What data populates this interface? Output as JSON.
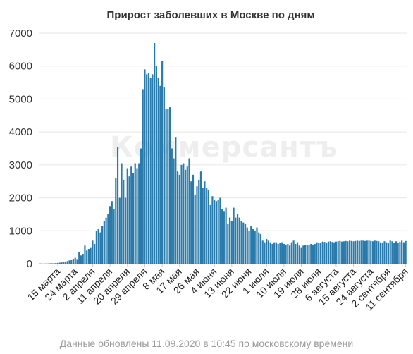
{
  "title": "Прирост заболевших в Москве по дням",
  "watermark": "Коммерсантъ",
  "footnote": "Данные обновлены 11.09.2020 в 10:45 по московскому времени",
  "colors": {
    "bar": "#2a7bab",
    "grid": "#e6e6e6",
    "text": "#333333",
    "footnote": "#9a9a9a"
  },
  "chart_data": {
    "type": "bar",
    "title": "Прирост заболевших в Москве по дням",
    "xlabel": "",
    "ylabel": "",
    "ylim": [
      0,
      7000
    ],
    "yticks": [
      0,
      1000,
      2000,
      3000,
      4000,
      5000,
      6000,
      7000
    ],
    "grid": true,
    "legend": "none",
    "x_start": "2020-03-06",
    "xtick_labels": [
      {
        "index": 9,
        "label": "15 марта"
      },
      {
        "index": 18,
        "label": "24 марта"
      },
      {
        "index": 27,
        "label": "2 апреля"
      },
      {
        "index": 36,
        "label": "11 апреля"
      },
      {
        "index": 45,
        "label": "20 апреля"
      },
      {
        "index": 54,
        "label": "29 апреля"
      },
      {
        "index": 63,
        "label": "8 мая"
      },
      {
        "index": 72,
        "label": "17 мая"
      },
      {
        "index": 81,
        "label": "26 мая"
      },
      {
        "index": 90,
        "label": "4 июня"
      },
      {
        "index": 99,
        "label": "13 июня"
      },
      {
        "index": 108,
        "label": "22 июня"
      },
      {
        "index": 117,
        "label": "1 июля"
      },
      {
        "index": 126,
        "label": "10 июля"
      },
      {
        "index": 135,
        "label": "19 июля"
      },
      {
        "index": 144,
        "label": "28 июля"
      },
      {
        "index": 153,
        "label": "6 августа"
      },
      {
        "index": 162,
        "label": "15 августа"
      },
      {
        "index": 171,
        "label": "24 августа"
      },
      {
        "index": 180,
        "label": "2 сентября"
      },
      {
        "index": 189,
        "label": "11 сентября"
      }
    ],
    "values": [
      6,
      0,
      3,
      4,
      5,
      10,
      12,
      15,
      20,
      25,
      32,
      40,
      50,
      60,
      80,
      100,
      120,
      150,
      180,
      140,
      350,
      250,
      300,
      550,
      400,
      450,
      500,
      700,
      600,
      1000,
      1050,
      950,
      1150,
      1300,
      1400,
      1500,
      1750,
      1900,
      1650,
      2600,
      3550,
      2000,
      3050,
      2550,
      2000,
      2900,
      2650,
      2950,
      2750,
      3050,
      2900,
      3050,
      3500,
      5300,
      5900,
      5750,
      5800,
      5650,
      5750,
      6700,
      6000,
      5650,
      5400,
      6150,
      5350,
      4700,
      4700,
      4750,
      3500,
      3200,
      3850,
      2800,
      2700,
      3000,
      3050,
      2850,
      2950,
      3200,
      2500,
      2700,
      2100,
      2350,
      2550,
      2800,
      2300,
      2500,
      2300,
      2250,
      1800,
      2050,
      1950,
      1900,
      1950,
      2000,
      1650,
      1600,
      1700,
      1200,
      1400,
      1300,
      1700,
      1400,
      1500,
      1400,
      1300,
      1250,
      1200,
      1100,
      1000,
      1150,
      1050,
      1000,
      1100,
      950,
      900,
      700,
      650,
      750,
      700,
      650,
      600,
      650,
      650,
      600,
      620,
      650,
      600,
      580,
      600,
      550,
      650,
      700,
      600,
      650,
      550,
      500,
      550,
      560,
      580,
      570,
      600,
      580,
      600,
      650,
      630,
      620,
      670,
      660,
      640,
      670,
      680,
      660,
      650,
      670,
      680,
      690,
      670,
      680,
      690,
      680,
      700,
      690,
      680,
      690,
      700,
      690,
      700,
      700,
      690,
      700,
      700,
      690,
      680,
      700,
      690,
      680,
      650,
      620,
      680,
      650,
      620,
      700,
      680,
      640,
      680,
      620,
      660,
      700,
      650,
      690
    ]
  }
}
